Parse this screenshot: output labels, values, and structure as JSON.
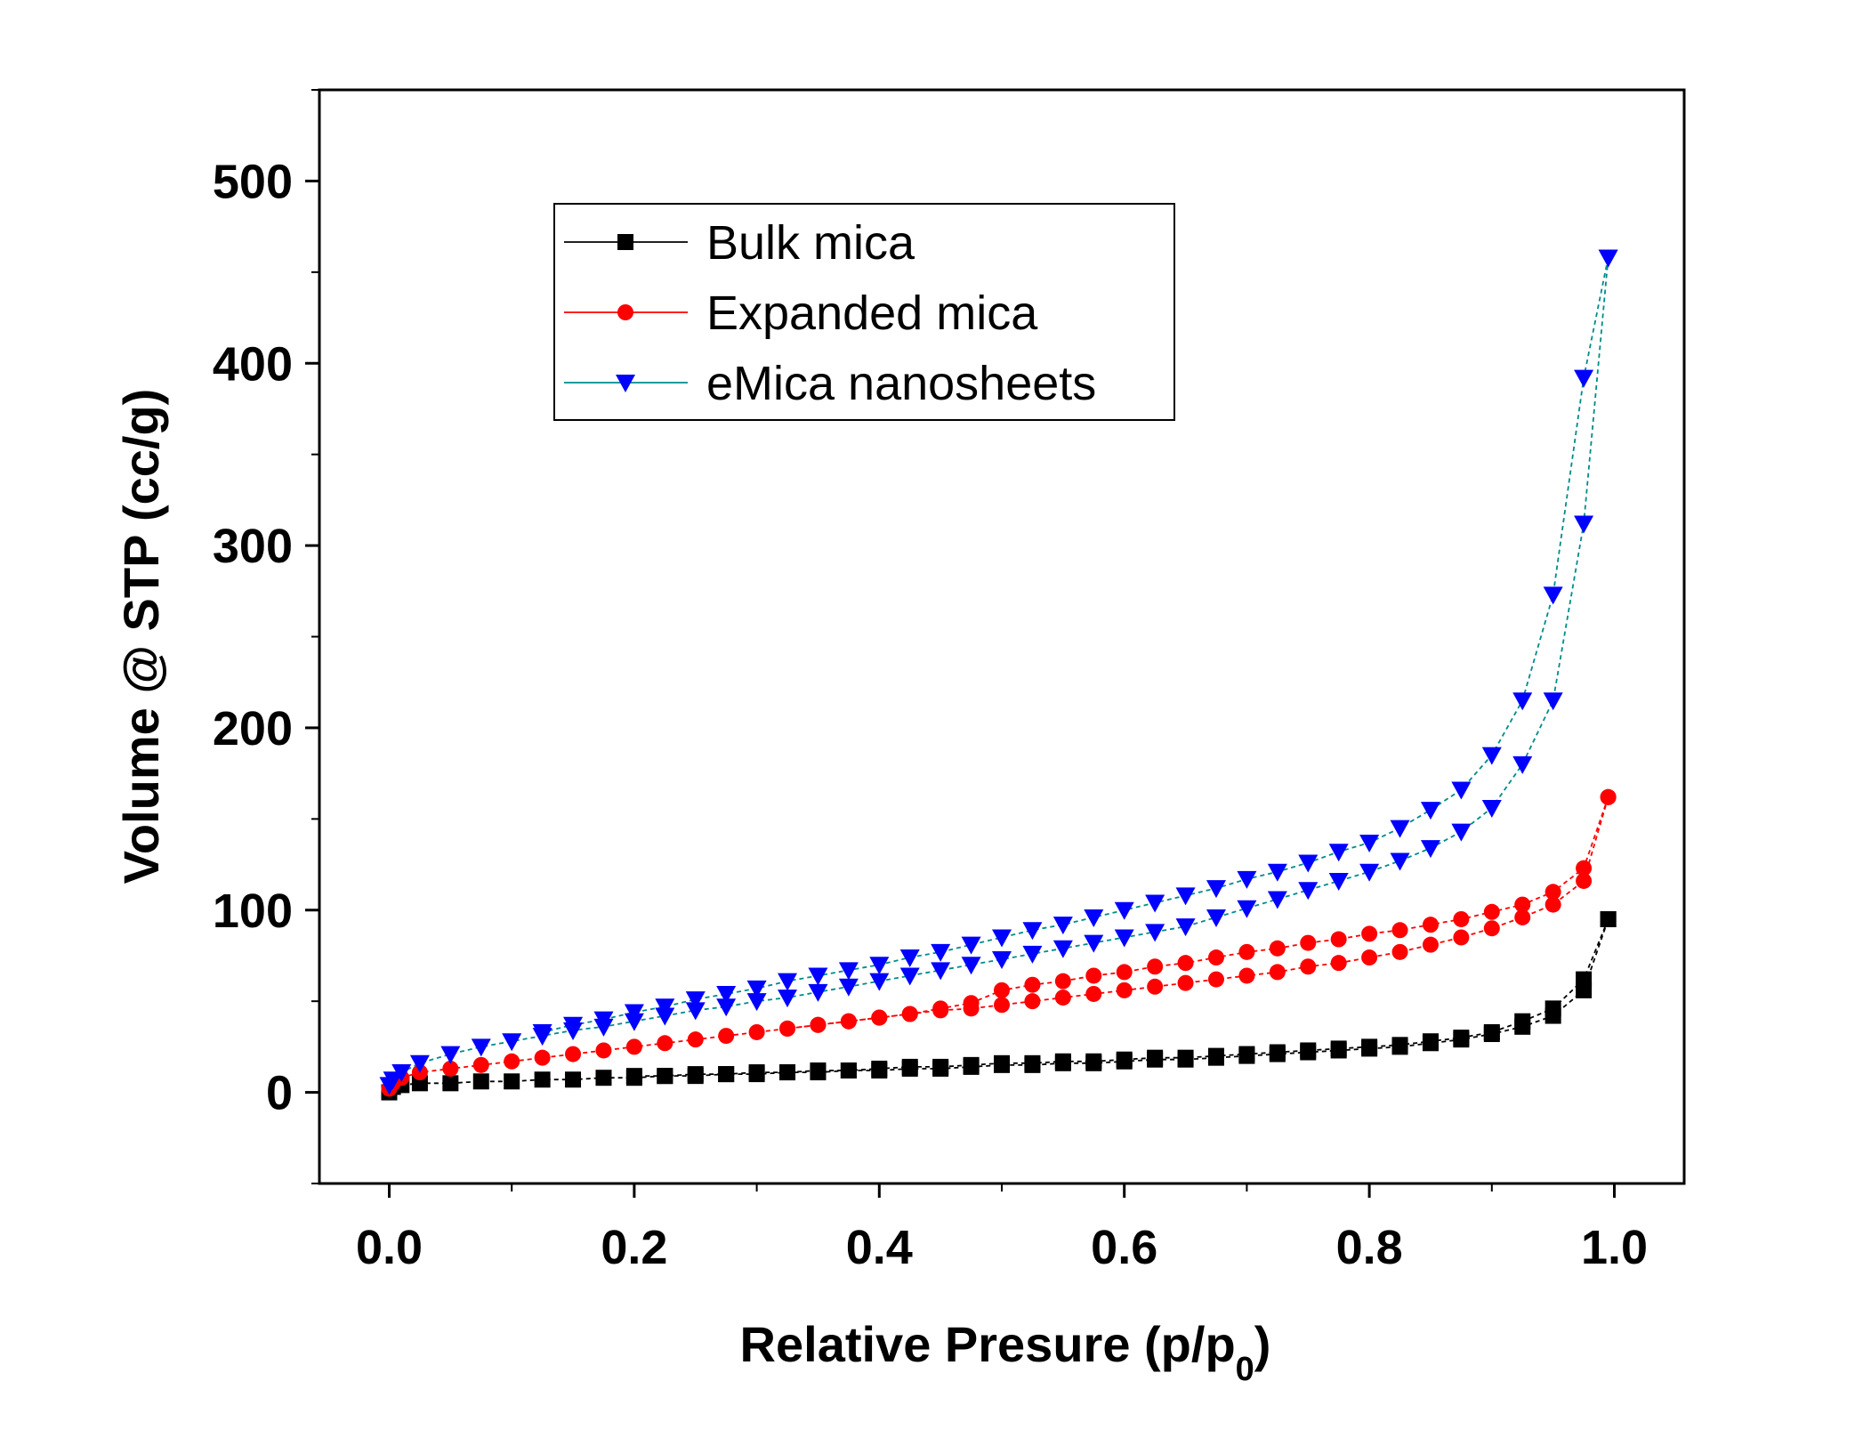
{
  "chart_data": {
    "type": "scatter",
    "xlabel": "Relative Presure (p/p",
    "xlabel_sub": "0",
    "xlabel_end": ")",
    "ylabel": "Volume @ STP (cc/g)",
    "xlim": [
      -0.057,
      1.057
    ],
    "ylim": [
      -50,
      550
    ],
    "xticks": [
      0.0,
      0.2,
      0.4,
      0.6,
      0.8,
      1.0
    ],
    "xtick_labels": [
      "0.0",
      "0.2",
      "0.4",
      "0.6",
      "0.8",
      "1.0"
    ],
    "yticks": [
      0,
      100,
      200,
      300,
      400,
      500
    ],
    "ytick_labels": [
      "0",
      "100",
      "200",
      "300",
      "400",
      "500"
    ],
    "legend_position": "top-left",
    "grid": false,
    "series": [
      {
        "name": "Bulk mica",
        "marker": "square",
        "marker_color": "#000000",
        "line_color": "#000000",
        "adsorption": [
          [
            0.0,
            0
          ],
          [
            0.003,
            3
          ],
          [
            0.01,
            4
          ],
          [
            0.025,
            5
          ],
          [
            0.05,
            5
          ],
          [
            0.075,
            6
          ],
          [
            0.1,
            6
          ],
          [
            0.125,
            7
          ],
          [
            0.15,
            7
          ],
          [
            0.175,
            8
          ],
          [
            0.2,
            8
          ],
          [
            0.225,
            9
          ],
          [
            0.25,
            9
          ],
          [
            0.275,
            10
          ],
          [
            0.3,
            10
          ],
          [
            0.325,
            11
          ],
          [
            0.35,
            11
          ],
          [
            0.375,
            12
          ],
          [
            0.4,
            12
          ],
          [
            0.425,
            13
          ],
          [
            0.45,
            13
          ],
          [
            0.475,
            14
          ],
          [
            0.5,
            15
          ],
          [
            0.525,
            15
          ],
          [
            0.55,
            16
          ],
          [
            0.575,
            16
          ],
          [
            0.6,
            17
          ],
          [
            0.625,
            18
          ],
          [
            0.65,
            18
          ],
          [
            0.675,
            19
          ],
          [
            0.7,
            20
          ],
          [
            0.725,
            21
          ],
          [
            0.75,
            22
          ],
          [
            0.775,
            23
          ],
          [
            0.8,
            24
          ],
          [
            0.825,
            25
          ],
          [
            0.85,
            27
          ],
          [
            0.875,
            29
          ],
          [
            0.9,
            32
          ],
          [
            0.925,
            36
          ],
          [
            0.95,
            42
          ],
          [
            0.975,
            56
          ],
          [
            0.995,
            95
          ]
        ],
        "desorption": [
          [
            0.995,
            95
          ],
          [
            0.975,
            62
          ],
          [
            0.95,
            46
          ],
          [
            0.925,
            39
          ],
          [
            0.9,
            33
          ],
          [
            0.875,
            30
          ],
          [
            0.85,
            28
          ],
          [
            0.825,
            26
          ],
          [
            0.8,
            25
          ],
          [
            0.775,
            24
          ],
          [
            0.75,
            23
          ],
          [
            0.725,
            22
          ],
          [
            0.7,
            21
          ],
          [
            0.675,
            20
          ],
          [
            0.65,
            19
          ],
          [
            0.625,
            19
          ],
          [
            0.6,
            18
          ],
          [
            0.575,
            17
          ],
          [
            0.55,
            17
          ],
          [
            0.525,
            16
          ],
          [
            0.5,
            16
          ],
          [
            0.475,
            15
          ],
          [
            0.45,
            14
          ],
          [
            0.425,
            14
          ],
          [
            0.4,
            13
          ],
          [
            0.375,
            12
          ],
          [
            0.35,
            12
          ],
          [
            0.325,
            11
          ],
          [
            0.3,
            11
          ],
          [
            0.275,
            10
          ],
          [
            0.25,
            10
          ],
          [
            0.225,
            9
          ],
          [
            0.2,
            9
          ]
        ]
      },
      {
        "name": "Expanded mica",
        "marker": "circle",
        "marker_color": "#ff0000",
        "line_color": "#ff0000",
        "adsorption": [
          [
            0.0,
            2
          ],
          [
            0.003,
            5
          ],
          [
            0.01,
            8
          ],
          [
            0.025,
            11
          ],
          [
            0.05,
            13
          ],
          [
            0.075,
            15
          ],
          [
            0.1,
            17
          ],
          [
            0.125,
            19
          ],
          [
            0.15,
            21
          ],
          [
            0.175,
            23
          ],
          [
            0.2,
            25
          ],
          [
            0.225,
            27
          ],
          [
            0.25,
            29
          ],
          [
            0.275,
            31
          ],
          [
            0.3,
            33
          ],
          [
            0.325,
            35
          ],
          [
            0.35,
            37
          ],
          [
            0.375,
            39
          ],
          [
            0.4,
            41
          ],
          [
            0.425,
            43
          ],
          [
            0.45,
            45
          ],
          [
            0.475,
            46
          ],
          [
            0.5,
            48
          ],
          [
            0.525,
            50
          ],
          [
            0.55,
            52
          ],
          [
            0.575,
            54
          ],
          [
            0.6,
            56
          ],
          [
            0.625,
            58
          ],
          [
            0.65,
            60
          ],
          [
            0.675,
            62
          ],
          [
            0.7,
            64
          ],
          [
            0.725,
            66
          ],
          [
            0.75,
            69
          ],
          [
            0.775,
            71
          ],
          [
            0.8,
            74
          ],
          [
            0.825,
            77
          ],
          [
            0.85,
            81
          ],
          [
            0.875,
            85
          ],
          [
            0.9,
            90
          ],
          [
            0.925,
            96
          ],
          [
            0.95,
            103
          ],
          [
            0.975,
            116
          ],
          [
            0.995,
            162
          ]
        ],
        "desorption": [
          [
            0.995,
            162
          ],
          [
            0.975,
            123
          ],
          [
            0.95,
            110
          ],
          [
            0.925,
            103
          ],
          [
            0.9,
            99
          ],
          [
            0.875,
            95
          ],
          [
            0.85,
            92
          ],
          [
            0.825,
            89
          ],
          [
            0.8,
            87
          ],
          [
            0.775,
            84
          ],
          [
            0.75,
            82
          ],
          [
            0.725,
            79
          ],
          [
            0.7,
            77
          ],
          [
            0.675,
            74
          ],
          [
            0.65,
            71
          ],
          [
            0.625,
            69
          ],
          [
            0.6,
            66
          ],
          [
            0.575,
            64
          ],
          [
            0.55,
            61
          ],
          [
            0.525,
            59
          ],
          [
            0.5,
            56
          ],
          [
            0.475,
            49
          ],
          [
            0.45,
            46
          ],
          [
            0.425,
            43
          ],
          [
            0.4,
            41
          ],
          [
            0.375,
            39
          ],
          [
            0.35,
            37
          ],
          [
            0.325,
            35
          ]
        ]
      },
      {
        "name": "eMica nanosheets",
        "marker": "triangle-down",
        "marker_color": "#0000ff",
        "line_color": "#008b8b",
        "adsorption": [
          [
            0.0,
            4
          ],
          [
            0.003,
            7
          ],
          [
            0.01,
            11
          ],
          [
            0.025,
            16
          ],
          [
            0.05,
            21
          ],
          [
            0.075,
            25
          ],
          [
            0.1,
            28
          ],
          [
            0.125,
            31
          ],
          [
            0.15,
            34
          ],
          [
            0.175,
            36
          ],
          [
            0.2,
            39
          ],
          [
            0.225,
            42
          ],
          [
            0.25,
            45
          ],
          [
            0.275,
            47
          ],
          [
            0.3,
            50
          ],
          [
            0.325,
            52
          ],
          [
            0.35,
            55
          ],
          [
            0.375,
            58
          ],
          [
            0.4,
            61
          ],
          [
            0.425,
            64
          ],
          [
            0.45,
            67
          ],
          [
            0.475,
            70
          ],
          [
            0.5,
            73
          ],
          [
            0.525,
            76
          ],
          [
            0.55,
            79
          ],
          [
            0.575,
            82
          ],
          [
            0.6,
            85
          ],
          [
            0.625,
            88
          ],
          [
            0.65,
            91
          ],
          [
            0.675,
            96
          ],
          [
            0.7,
            101
          ],
          [
            0.725,
            106
          ],
          [
            0.75,
            111
          ],
          [
            0.775,
            116
          ],
          [
            0.8,
            121
          ],
          [
            0.825,
            127
          ],
          [
            0.85,
            134
          ],
          [
            0.875,
            143
          ],
          [
            0.9,
            156
          ],
          [
            0.925,
            180
          ],
          [
            0.95,
            215
          ],
          [
            0.975,
            312
          ],
          [
            0.995,
            458
          ]
        ],
        "desorption": [
          [
            0.995,
            458
          ],
          [
            0.975,
            392
          ],
          [
            0.95,
            273
          ],
          [
            0.925,
            215
          ],
          [
            0.9,
            185
          ],
          [
            0.875,
            166
          ],
          [
            0.85,
            155
          ],
          [
            0.825,
            145
          ],
          [
            0.8,
            137
          ],
          [
            0.775,
            132
          ],
          [
            0.75,
            126
          ],
          [
            0.725,
            121
          ],
          [
            0.7,
            117
          ],
          [
            0.675,
            112
          ],
          [
            0.65,
            108
          ],
          [
            0.625,
            104
          ],
          [
            0.6,
            100
          ],
          [
            0.575,
            96
          ],
          [
            0.55,
            92
          ],
          [
            0.525,
            89
          ],
          [
            0.5,
            85
          ],
          [
            0.475,
            81
          ],
          [
            0.45,
            77
          ],
          [
            0.425,
            74
          ],
          [
            0.4,
            70
          ],
          [
            0.375,
            67
          ],
          [
            0.35,
            64
          ],
          [
            0.325,
            61
          ],
          [
            0.3,
            57
          ],
          [
            0.275,
            54
          ],
          [
            0.25,
            51
          ],
          [
            0.225,
            47
          ],
          [
            0.2,
            44
          ],
          [
            0.175,
            40
          ],
          [
            0.15,
            37
          ],
          [
            0.125,
            33
          ]
        ]
      }
    ]
  }
}
